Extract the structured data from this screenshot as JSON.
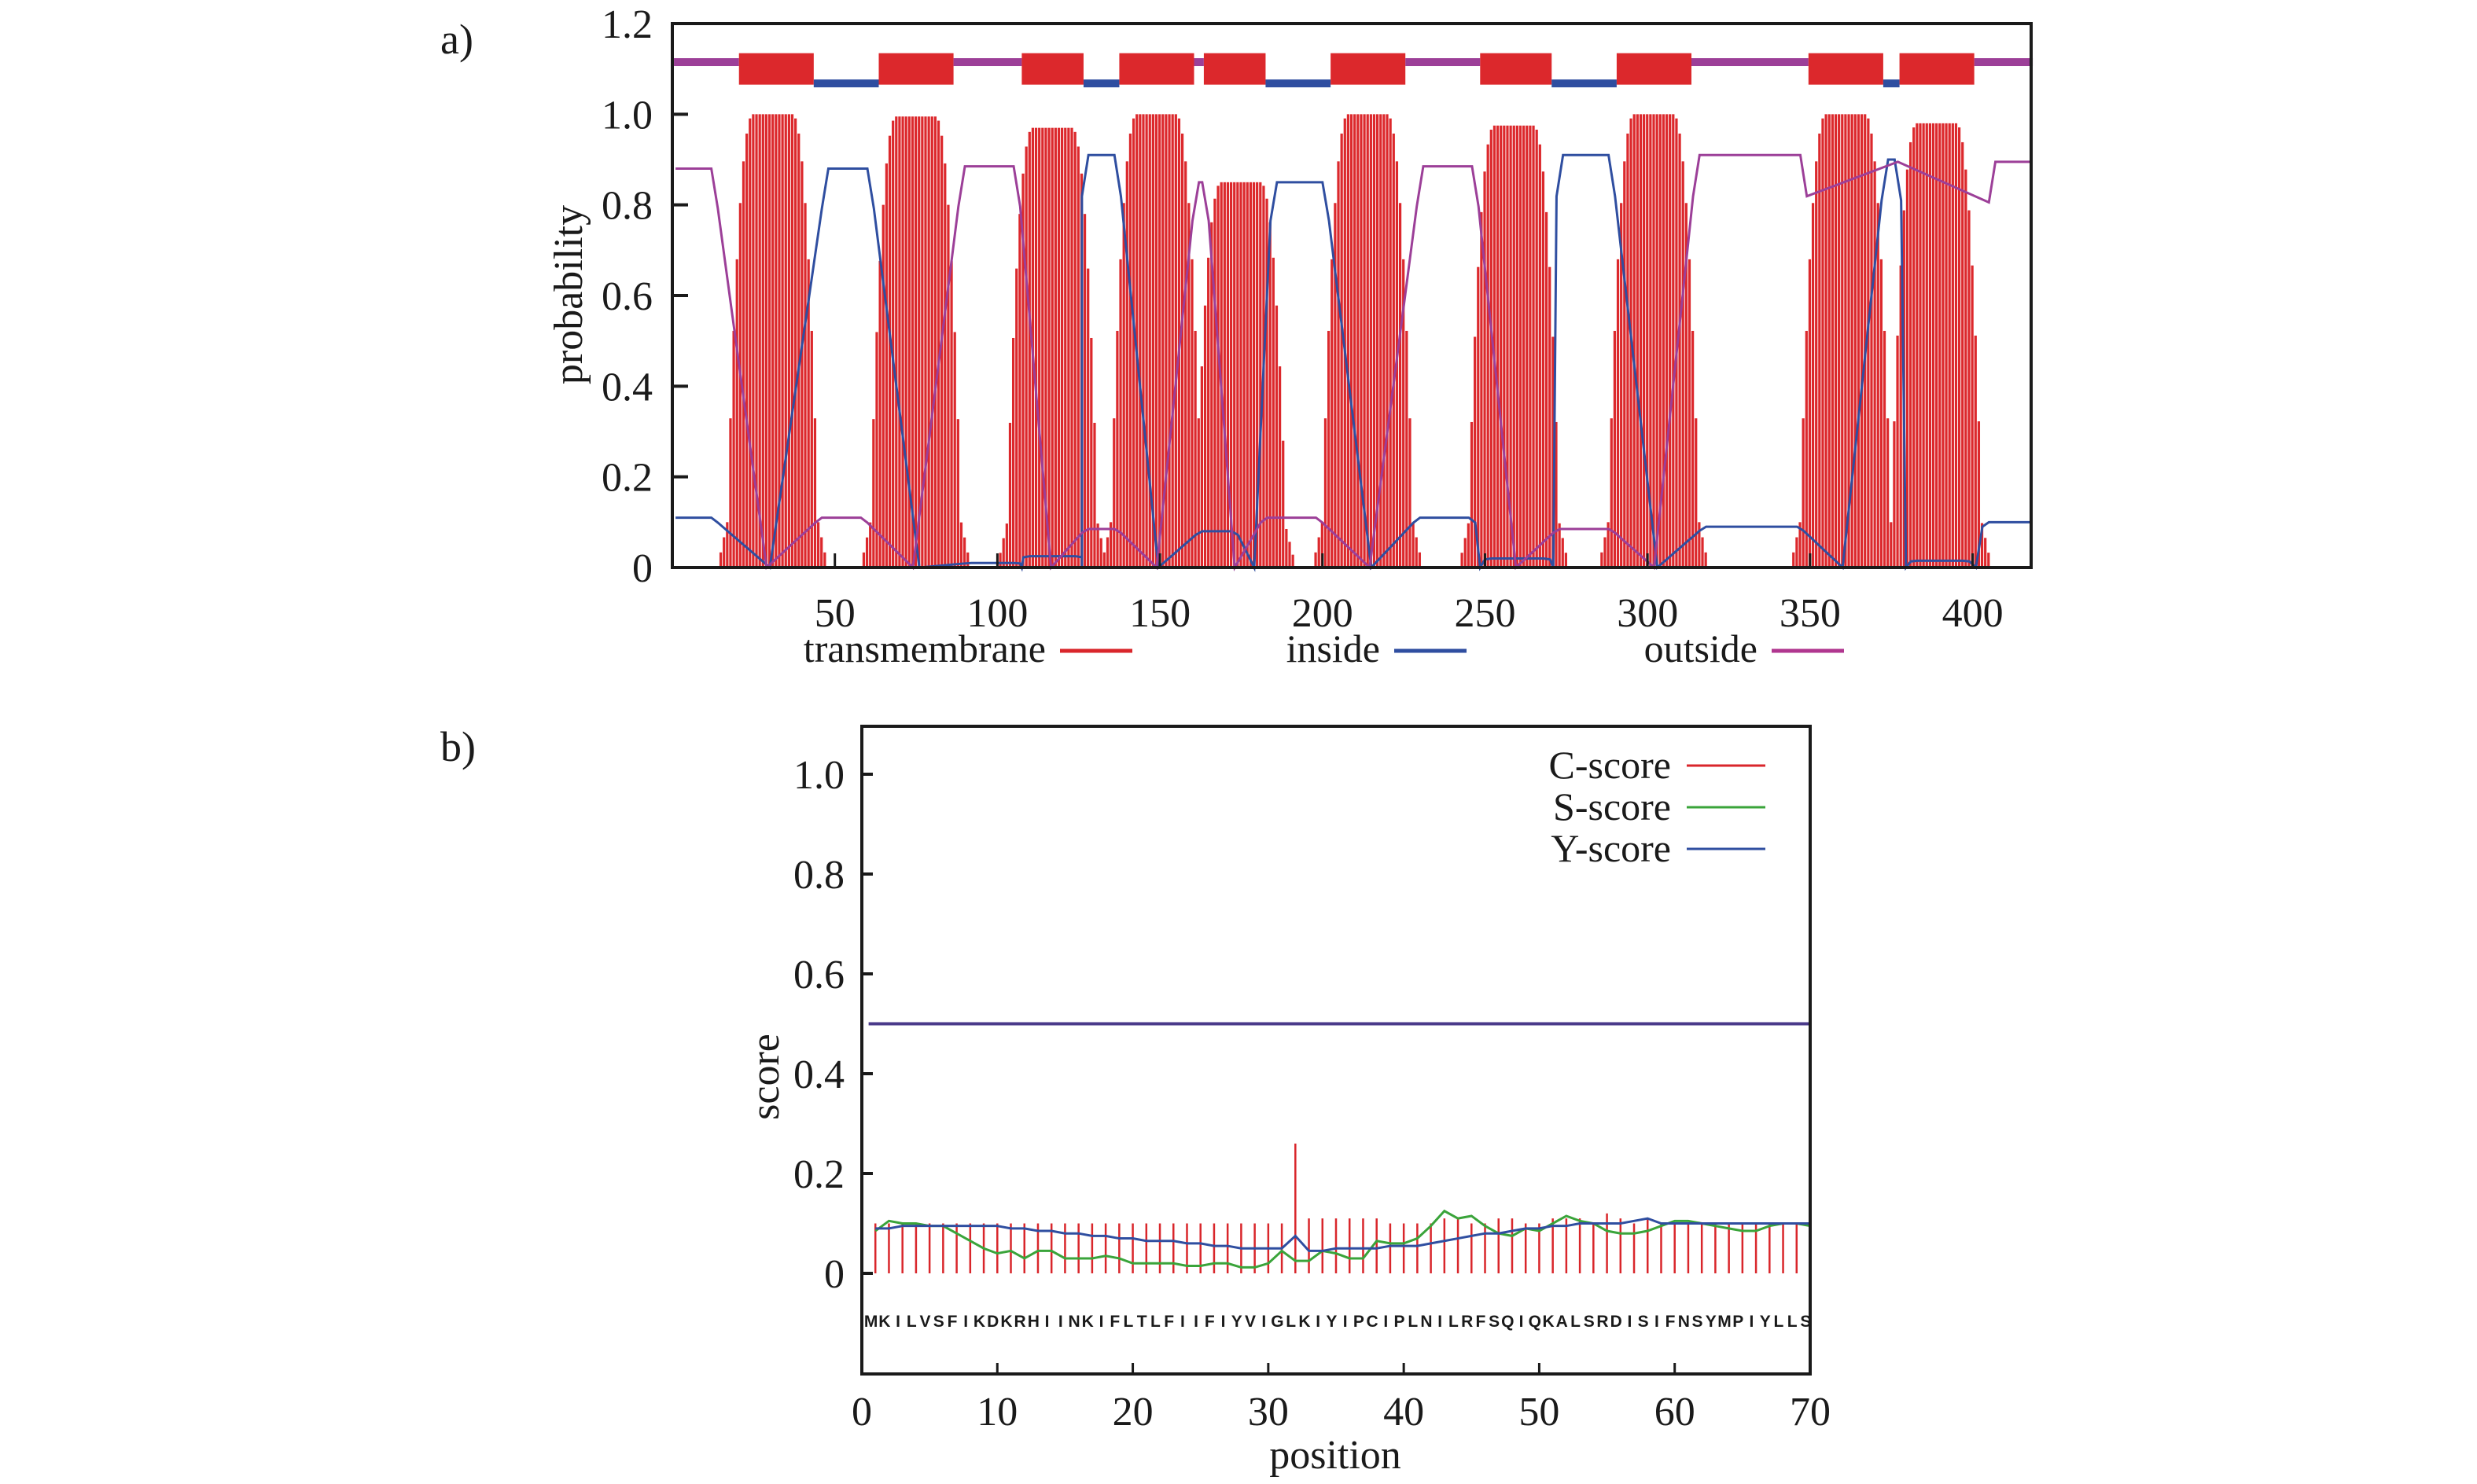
{
  "chart_data": [
    {
      "type": "bar",
      "panel_label": "a)",
      "title": "",
      "xlabel": "",
      "ylabel": "probability",
      "xlim": [
        0,
        418
      ],
      "ylim": [
        0,
        1.2
      ],
      "xticks": [
        50,
        100,
        150,
        200,
        250,
        300,
        350,
        400
      ],
      "yticks": [
        0,
        0.2,
        0.4,
        0.6,
        0.8,
        1.0,
        1.2
      ],
      "ytick_labels": [
        "0",
        "0.2",
        "0.4",
        "0.6",
        "0.8",
        "1.0",
        "1.2"
      ],
      "grid": false,
      "legend_position": "bottom",
      "legend": [
        {
          "name": "transmembrane",
          "color": "#d9262b"
        },
        {
          "name": "inside",
          "color": "#2f4ea0"
        },
        {
          "name": "outside",
          "color": "#b0368f"
        }
      ],
      "colors": {
        "transmembrane": "#dc282c",
        "inside": "#2f4ea0",
        "outside": "#9c3f98"
      },
      "topology": [
        {
          "type": "outside",
          "start": 1,
          "end": 20
        },
        {
          "type": "transmembrane",
          "start": 21,
          "end": 43
        },
        {
          "type": "inside",
          "start": 44,
          "end": 63
        },
        {
          "type": "transmembrane",
          "start": 64,
          "end": 86
        },
        {
          "type": "outside",
          "start": 87,
          "end": 107
        },
        {
          "type": "transmembrane",
          "start": 108,
          "end": 126
        },
        {
          "type": "inside",
          "start": 127,
          "end": 137
        },
        {
          "type": "transmembrane",
          "start": 138,
          "end": 160
        },
        {
          "type": "outside",
          "start": 161,
          "end": 163
        },
        {
          "type": "transmembrane",
          "start": 164,
          "end": 182
        },
        {
          "type": "inside",
          "start": 183,
          "end": 202
        },
        {
          "type": "transmembrane",
          "start": 203,
          "end": 225
        },
        {
          "type": "outside",
          "start": 226,
          "end": 248
        },
        {
          "type": "transmembrane",
          "start": 249,
          "end": 270
        },
        {
          "type": "inside",
          "start": 271,
          "end": 290
        },
        {
          "type": "transmembrane",
          "start": 291,
          "end": 313
        },
        {
          "type": "outside",
          "start": 314,
          "end": 349
        },
        {
          "type": "transmembrane",
          "start": 350,
          "end": 372
        },
        {
          "type": "inside",
          "start": 373,
          "end": 377
        },
        {
          "type": "transmembrane",
          "start": 378,
          "end": 400
        },
        {
          "type": "outside",
          "start": 401,
          "end": 418
        }
      ],
      "tm_peaks": [
        {
          "center": 31,
          "peak": 1.0
        },
        {
          "center": 75,
          "peak": 0.995
        },
        {
          "center": 117,
          "peak": 0.97
        },
        {
          "center": 149,
          "peak": 1.0
        },
        {
          "center": 175,
          "peak": 0.85
        },
        {
          "center": 214,
          "peak": 1.0
        },
        {
          "center": 259,
          "peak": 0.975
        },
        {
          "center": 302,
          "peak": 1.0
        },
        {
          "center": 361,
          "peak": 1.0
        },
        {
          "center": 389,
          "peak": 0.98
        }
      ],
      "inside_levels": [
        {
          "start": 1,
          "end": 12,
          "value": 0.11
        },
        {
          "start": 48,
          "end": 60,
          "value": 0.88
        },
        {
          "start": 92,
          "end": 105,
          "value": 0.01
        },
        {
          "start": 110,
          "end": 124,
          "value": 0.025
        },
        {
          "start": 128,
          "end": 136,
          "value": 0.91
        },
        {
          "start": 163,
          "end": 172,
          "value": 0.08
        },
        {
          "start": 186,
          "end": 200,
          "value": 0.85
        },
        {
          "start": 230,
          "end": 245,
          "value": 0.11
        },
        {
          "start": 252,
          "end": 268,
          "value": 0.02
        },
        {
          "start": 274,
          "end": 288,
          "value": 0.91
        },
        {
          "start": 318,
          "end": 346,
          "value": 0.09
        },
        {
          "start": 374,
          "end": 376,
          "value": 0.9
        },
        {
          "start": 383,
          "end": 397,
          "value": 0.015
        },
        {
          "start": 405,
          "end": 418,
          "value": 0.1
        }
      ],
      "outside_levels": [
        {
          "start": 1,
          "end": 12,
          "value": 0.88
        },
        {
          "start": 46,
          "end": 58,
          "value": 0.11
        },
        {
          "start": 90,
          "end": 105,
          "value": 0.885
        },
        {
          "start": 128,
          "end": 136,
          "value": 0.085
        },
        {
          "start": 162,
          "end": 163,
          "value": 0.85
        },
        {
          "start": 183,
          "end": 198,
          "value": 0.11
        },
        {
          "start": 231,
          "end": 246,
          "value": 0.885
        },
        {
          "start": 273,
          "end": 288,
          "value": 0.085
        },
        {
          "start": 316,
          "end": 347,
          "value": 0.91
        },
        {
          "start": 407,
          "end": 418,
          "value": 0.895
        }
      ]
    },
    {
      "type": "line",
      "panel_label": "b)",
      "title": "",
      "xlabel": "position",
      "ylabel": "score",
      "xlim": [
        0,
        70
      ],
      "ylim": [
        -0.2,
        1.1
      ],
      "xticks": [
        0,
        10,
        20,
        30,
        40,
        50,
        60,
        70
      ],
      "yticks": [
        0,
        0.2,
        0.4,
        0.6,
        0.8,
        1.0
      ],
      "ytick_labels": [
        "0",
        "0.2",
        "0.4",
        "0.6",
        "0.8",
        "1.0"
      ],
      "grid": false,
      "legend_position": "top-right",
      "threshold": 0.5,
      "threshold_color": "#4a3a8a",
      "sequence": "MKILVSFIKDKRHIINKIFLTLFIIFIYVIGLKIYIPCIPLNILRFSQIQKALSRDISIFNSYMPIYLLS",
      "series": [
        {
          "name": "C-score",
          "color": "#d9262b",
          "style": "impulses",
          "values": [
            0.1,
            0.1,
            0.1,
            0.1,
            0.1,
            0.1,
            0.1,
            0.1,
            0.1,
            0.1,
            0.1,
            0.1,
            0.1,
            0.1,
            0.1,
            0.1,
            0.1,
            0.1,
            0.1,
            0.1,
            0.1,
            0.1,
            0.1,
            0.1,
            0.1,
            0.1,
            0.1,
            0.1,
            0.1,
            0.1,
            0.1,
            0.26,
            0.11,
            0.11,
            0.11,
            0.11,
            0.11,
            0.11,
            0.1,
            0.1,
            0.1,
            0.1,
            0.11,
            0.11,
            0.1,
            0.1,
            0.11,
            0.11,
            0.1,
            0.1,
            0.11,
            0.11,
            0.11,
            0.1,
            0.12,
            0.11,
            0.1,
            0.11,
            0.1,
            0.1,
            0.1,
            0.1,
            0.1,
            0.1,
            0.1,
            0.1,
            0.1,
            0.1,
            0.1,
            0.1
          ]
        },
        {
          "name": "S-score",
          "color": "#3aa43a",
          "style": "line",
          "values": [
            0.085,
            0.105,
            0.1,
            0.1,
            0.095,
            0.095,
            0.08,
            0.065,
            0.05,
            0.04,
            0.045,
            0.03,
            0.045,
            0.045,
            0.03,
            0.03,
            0.03,
            0.035,
            0.03,
            0.02,
            0.02,
            0.02,
            0.02,
            0.015,
            0.015,
            0.02,
            0.02,
            0.012,
            0.012,
            0.02,
            0.045,
            0.025,
            0.025,
            0.045,
            0.04,
            0.03,
            0.03,
            0.065,
            0.06,
            0.06,
            0.07,
            0.095,
            0.125,
            0.11,
            0.115,
            0.095,
            0.08,
            0.075,
            0.09,
            0.085,
            0.1,
            0.115,
            0.105,
            0.1,
            0.085,
            0.08,
            0.08,
            0.085,
            0.095,
            0.105,
            0.105,
            0.1,
            0.095,
            0.09,
            0.085,
            0.085,
            0.095,
            0.1,
            0.1,
            0.095
          ]
        },
        {
          "name": "Y-score",
          "color": "#2f4ea0",
          "style": "line",
          "values": [
            0.09,
            0.09,
            0.095,
            0.095,
            0.095,
            0.095,
            0.095,
            0.095,
            0.095,
            0.095,
            0.09,
            0.09,
            0.085,
            0.085,
            0.08,
            0.08,
            0.075,
            0.075,
            0.07,
            0.07,
            0.065,
            0.065,
            0.065,
            0.06,
            0.06,
            0.055,
            0.055,
            0.05,
            0.05,
            0.05,
            0.05,
            0.075,
            0.045,
            0.045,
            0.05,
            0.05,
            0.05,
            0.05,
            0.055,
            0.055,
            0.055,
            0.06,
            0.065,
            0.07,
            0.075,
            0.08,
            0.08,
            0.085,
            0.09,
            0.09,
            0.095,
            0.095,
            0.1,
            0.1,
            0.1,
            0.1,
            0.105,
            0.11,
            0.1,
            0.1,
            0.1,
            0.1,
            0.1,
            0.1,
            0.1,
            0.1,
            0.1,
            0.1,
            0.1,
            0.1
          ]
        }
      ]
    }
  ]
}
